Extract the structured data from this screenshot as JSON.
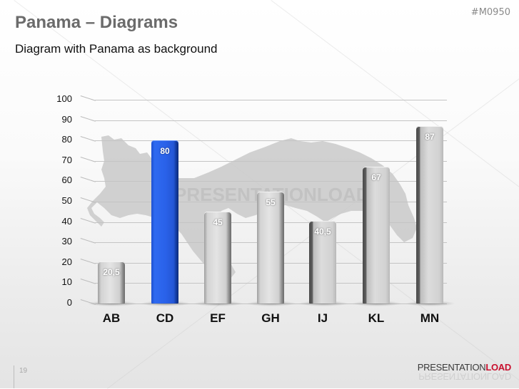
{
  "slide": {
    "title": "Panama – Diagrams",
    "subtitle": "Diagram with Panama as background",
    "code": "#M0950",
    "page_number": "19",
    "brand": {
      "part1": "PRESENTATION",
      "part2": "LOAD"
    },
    "watermark": "PRESENTATIONLOAD"
  },
  "colors": {
    "highlight_bar": "#2a62ea",
    "default_bar": "#d3d3d3",
    "title": "#6b6b6b",
    "brand_accent": "#c8102e"
  },
  "chart_data": {
    "type": "bar",
    "title": "",
    "xlabel": "",
    "ylabel": "",
    "categories": [
      "AB",
      "CD",
      "EF",
      "GH",
      "IJ",
      "KL",
      "MN"
    ],
    "values": [
      20.5,
      80,
      45,
      55,
      40.5,
      67,
      87
    ],
    "value_labels": [
      "20,5",
      "80",
      "45",
      "55",
      "40,5",
      "67",
      "87"
    ],
    "highlighted_category": "CD",
    "ylim": [
      0,
      100
    ],
    "yticks": [
      "0",
      "10",
      "20",
      "30",
      "40",
      "50",
      "60",
      "70",
      "80",
      "90",
      "100"
    ],
    "grid": true,
    "legend": null,
    "background": "map of Panama (gray silhouette)"
  }
}
